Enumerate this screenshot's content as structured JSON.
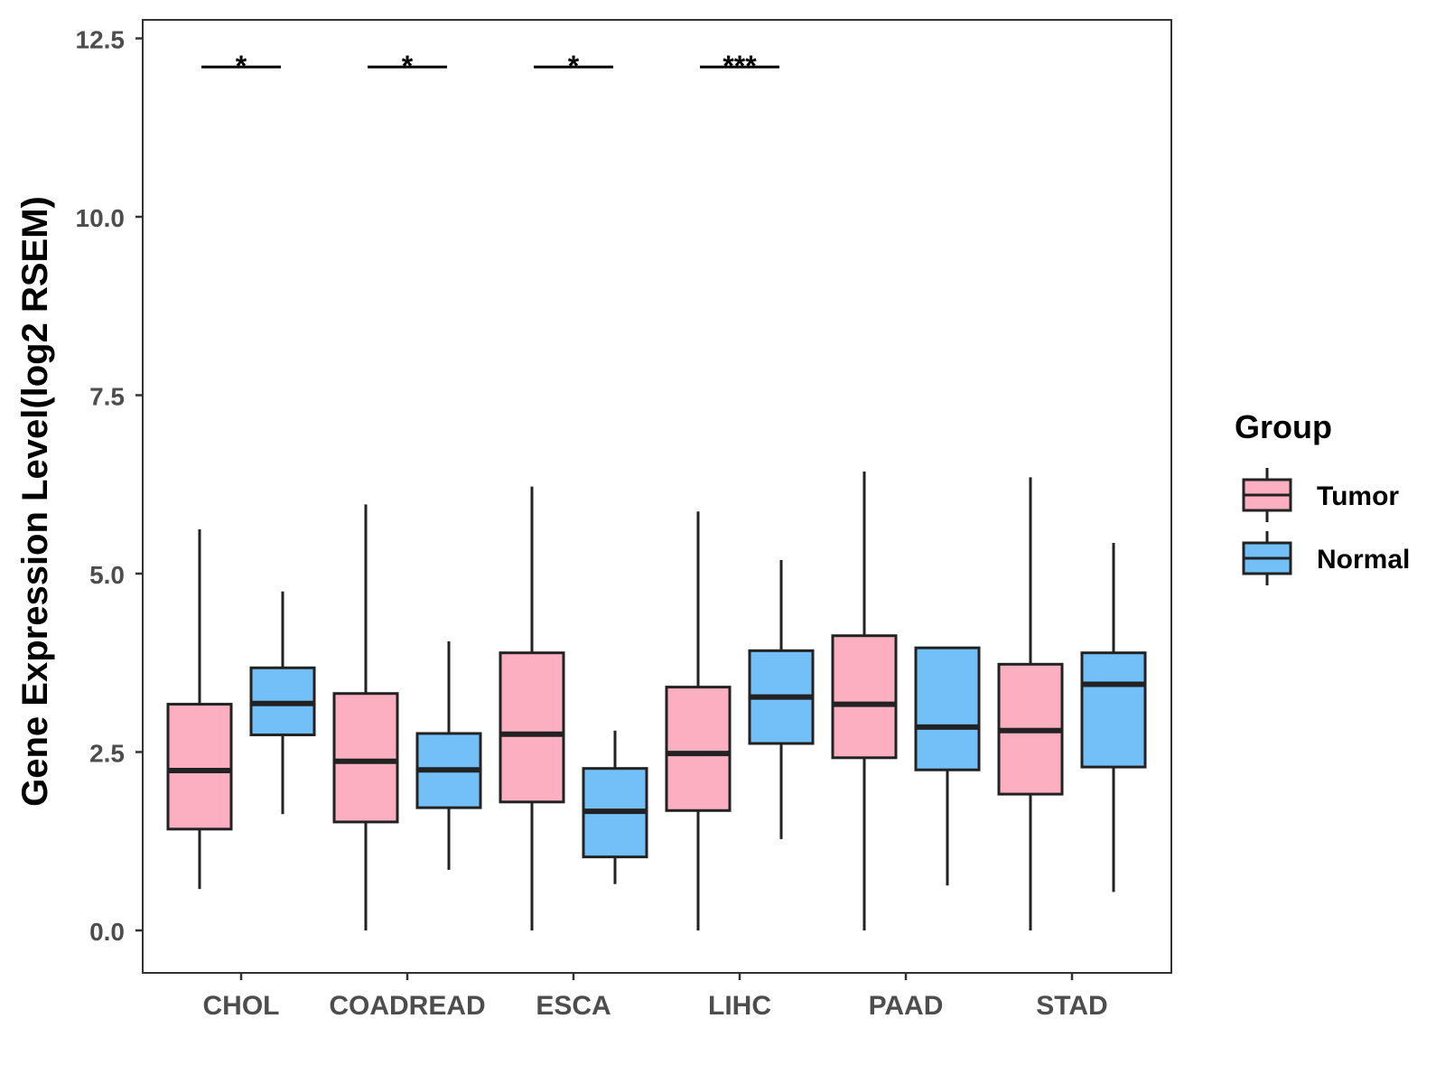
{
  "chart_data": {
    "type": "boxplot",
    "title": "",
    "xlabel": "",
    "ylabel": "Gene Expression Level(log2 RSEM)",
    "ylim": [
      -0.6,
      12.75
    ],
    "yticks": [
      0.0,
      2.5,
      5.0,
      7.5,
      10.0,
      12.5
    ],
    "ytick_labels": [
      "0.0",
      "2.5",
      "5.0",
      "7.5",
      "10.0",
      "12.5"
    ],
    "grid": false,
    "categories": [
      "CHOL",
      "COADREAD",
      "ESCA",
      "LIHC",
      "PAAD",
      "STAD"
    ],
    "legend": {
      "title": "Group",
      "position": "right",
      "entries": [
        {
          "name": "Tumor",
          "color": "#fbafc0"
        },
        {
          "name": "Normal",
          "color": "#73bff8"
        }
      ]
    },
    "series": [
      {
        "name": "Tumor",
        "color": "#fbafc0",
        "boxes": [
          {
            "category": "CHOL",
            "whisker_low": 0.58,
            "q1": 1.42,
            "median": 2.24,
            "q3": 3.17,
            "whisker_high": 5.62
          },
          {
            "category": "COADREAD",
            "whisker_low": 0.0,
            "q1": 1.52,
            "median": 2.37,
            "q3": 3.32,
            "whisker_high": 5.97
          },
          {
            "category": "ESCA",
            "whisker_low": 0.0,
            "q1": 1.8,
            "median": 2.75,
            "q3": 3.89,
            "whisker_high": 6.22
          },
          {
            "category": "LIHC",
            "whisker_low": 0.0,
            "q1": 1.68,
            "median": 2.48,
            "q3": 3.41,
            "whisker_high": 5.87
          },
          {
            "category": "PAAD",
            "whisker_low": 0.0,
            "q1": 2.42,
            "median": 3.17,
            "q3": 4.13,
            "whisker_high": 6.43
          },
          {
            "category": "STAD",
            "whisker_low": 0.0,
            "q1": 1.91,
            "median": 2.8,
            "q3": 3.73,
            "whisker_high": 6.35
          }
        ]
      },
      {
        "name": "Normal",
        "color": "#73bff8",
        "boxes": [
          {
            "category": "CHOL",
            "whisker_low": 1.63,
            "q1": 2.74,
            "median": 3.18,
            "q3": 3.68,
            "whisker_high": 4.75
          },
          {
            "category": "COADREAD",
            "whisker_low": 0.85,
            "q1": 1.72,
            "median": 2.25,
            "q3": 2.76,
            "whisker_high": 4.05
          },
          {
            "category": "ESCA",
            "whisker_low": 0.65,
            "q1": 1.03,
            "median": 1.67,
            "q3": 2.27,
            "whisker_high": 2.8
          },
          {
            "category": "LIHC",
            "whisker_low": 1.28,
            "q1": 2.62,
            "median": 3.27,
            "q3": 3.92,
            "whisker_high": 5.19
          },
          {
            "category": "PAAD",
            "whisker_low": 0.63,
            "q1": 2.25,
            "median": 2.85,
            "q3": 3.96,
            "whisker_high": 3.96
          },
          {
            "category": "STAD",
            "whisker_low": 0.54,
            "q1": 2.29,
            "median": 3.45,
            "q3": 3.89,
            "whisker_high": 5.43
          }
        ]
      }
    ],
    "significance": [
      {
        "category": "CHOL",
        "label": "*",
        "y": 12.1
      },
      {
        "category": "COADREAD",
        "label": "*",
        "y": 12.1
      },
      {
        "category": "ESCA",
        "label": "*",
        "y": 12.1
      },
      {
        "category": "LIHC",
        "label": "***",
        "y": 12.1
      }
    ]
  }
}
